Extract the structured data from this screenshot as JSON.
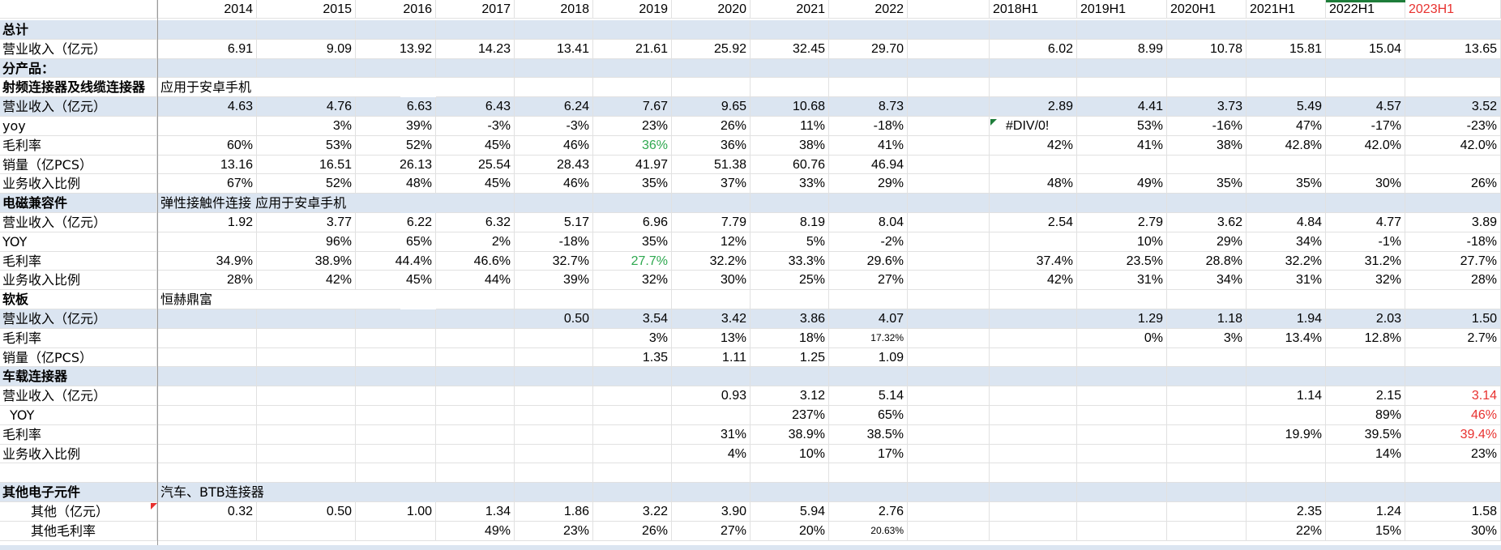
{
  "sheet": {
    "years": [
      "2014",
      "2015",
      "2016",
      "2017",
      "2018",
      "2019",
      "2020",
      "2021",
      "2022"
    ],
    "halves": [
      "2018H1",
      "2019H1",
      "2020H1",
      "2021H1",
      "2022H1",
      "2023H1"
    ],
    "half_colors": [
      null,
      null,
      null,
      null,
      null,
      "#e8312f"
    ],
    "green": "#2ea84f",
    "red": "#e8312f",
    "band": "#dbe5f1",
    "rows": [
      {
        "label": "总计",
        "band": true,
        "bold": true
      },
      {
        "label": "营业收入（亿元）",
        "years": [
          "6.91",
          "9.09",
          "13.92",
          "14.23",
          "13.41",
          "21.61",
          "25.92",
          "32.45",
          "29.70"
        ],
        "halves": [
          "6.02",
          "8.99",
          "10.78",
          "15.81",
          "15.04",
          "13.65"
        ]
      },
      {
        "label": "分产品：",
        "band": true,
        "bold": true
      },
      {
        "label": "射频连接器及线缆连接器",
        "bold": true,
        "note": "应用于安卓手机"
      },
      {
        "label": "营业收入（亿元）",
        "band": true,
        "years": [
          "4.63",
          "4.76",
          "6.63",
          "6.43",
          "6.24",
          "7.67",
          "9.65",
          "10.68",
          "8.73"
        ],
        "halves": [
          "2.89",
          "4.41",
          "3.73",
          "5.49",
          "4.57",
          "3.52"
        ]
      },
      {
        "label": "yoy",
        "years": [
          "",
          "3%",
          "39%",
          "-3%",
          "-3%",
          "23%",
          "26%",
          "11%",
          "-18%"
        ],
        "halves": [
          "#DIV/0!",
          "53%",
          "-16%",
          "47%",
          "-17%",
          "-23%"
        ]
      },
      {
        "label": "毛利率",
        "years": [
          "60%",
          "53%",
          "52%",
          "45%",
          "46%",
          "36%",
          "36%",
          "38%",
          "41%"
        ],
        "years_colors": {
          "5": "green"
        },
        "halves": [
          "42%",
          "41%",
          "38%",
          "42.8%",
          "42.0%",
          "42.0%"
        ]
      },
      {
        "label": "销量（亿PCS）",
        "years": [
          "13.16",
          "16.51",
          "26.13",
          "25.54",
          "28.43",
          "41.97",
          "51.38",
          "60.76",
          "46.94"
        ],
        "halves": [
          "",
          "",
          "",
          "",
          "",
          ""
        ]
      },
      {
        "label": "业务收入比例",
        "years": [
          "67%",
          "52%",
          "48%",
          "45%",
          "46%",
          "35%",
          "37%",
          "33%",
          "29%"
        ],
        "halves": [
          "48%",
          "49%",
          "35%",
          "35%",
          "30%",
          "26%"
        ]
      },
      {
        "label": "电磁兼容件",
        "band": true,
        "bold": true,
        "note": "弹性接触件连接 应用于安卓手机"
      },
      {
        "label": "营业收入（亿元）",
        "years": [
          "1.92",
          "3.77",
          "6.22",
          "6.32",
          "5.17",
          "6.96",
          "7.79",
          "8.19",
          "8.04"
        ],
        "halves": [
          "2.54",
          "2.79",
          "3.62",
          "4.84",
          "4.77",
          "3.89"
        ]
      },
      {
        "label": "YOY",
        "years": [
          "",
          "96%",
          "65%",
          "2%",
          "-18%",
          "35%",
          "12%",
          "5%",
          "-2%"
        ],
        "halves": [
          "",
          "10%",
          "29%",
          "34%",
          "-1%",
          "-18%"
        ]
      },
      {
        "label": "毛利率",
        "years": [
          "34.9%",
          "38.9%",
          "44.4%",
          "46.6%",
          "32.7%",
          "27.7%",
          "32.2%",
          "33.3%",
          "29.6%"
        ],
        "years_colors": {
          "5": "green"
        },
        "halves": [
          "37.4%",
          "23.5%",
          "28.8%",
          "32.2%",
          "31.2%",
          "27.7%"
        ]
      },
      {
        "label": "业务收入比例",
        "years": [
          "28%",
          "42%",
          "45%",
          "44%",
          "39%",
          "32%",
          "30%",
          "25%",
          "27%"
        ],
        "halves": [
          "42%",
          "31%",
          "34%",
          "31%",
          "32%",
          "28%"
        ]
      },
      {
        "label": "软板",
        "bold": true,
        "note": "恒赫鼎富"
      },
      {
        "label": "营业收入（亿元）",
        "band": true,
        "years": [
          "",
          "",
          "",
          "",
          "0.50",
          "3.54",
          "3.42",
          "3.86",
          "4.07"
        ],
        "halves": [
          "",
          "1.29",
          "1.18",
          "1.94",
          "2.03",
          "1.50"
        ]
      },
      {
        "label": "毛利率",
        "years": [
          "",
          "",
          "",
          "",
          "",
          "3%",
          "13%",
          "18%",
          "17.32%"
        ],
        "years_small": {
          "8": true
        },
        "halves": [
          "",
          "0%",
          "3%",
          "13.4%",
          "12.8%",
          "2.7%"
        ]
      },
      {
        "label": "销量（亿PCS）",
        "years": [
          "",
          "",
          "",
          "",
          "",
          "1.35",
          "1.11",
          "1.25",
          "1.09"
        ],
        "halves": [
          "",
          "",
          "",
          "",
          "",
          ""
        ]
      },
      {
        "label": "车载连接器",
        "band": true,
        "bold": true
      },
      {
        "label": "营业收入（亿元）",
        "years": [
          "",
          "",
          "",
          "",
          "",
          "",
          "0.93",
          "3.12",
          "5.14"
        ],
        "halves": [
          "",
          "",
          "",
          "1.14",
          "2.15",
          "3.14"
        ],
        "halves_colors": {
          "5": "red"
        }
      },
      {
        "label": "YOY",
        "indent": 1,
        "years": [
          "",
          "",
          "",
          "",
          "",
          "",
          "",
          "237%",
          "65%"
        ],
        "halves": [
          "",
          "",
          "",
          "",
          "89%",
          "46%"
        ],
        "halves_colors": {
          "5": "red"
        }
      },
      {
        "label": "毛利率",
        "years": [
          "",
          "",
          "",
          "",
          "",
          "",
          "31%",
          "38.9%",
          "38.5%"
        ],
        "halves": [
          "",
          "",
          "",
          "19.9%",
          "39.5%",
          "39.4%"
        ],
        "halves_colors": {
          "5": "red"
        }
      },
      {
        "label": "业务收入比例",
        "years": [
          "",
          "",
          "",
          "",
          "",
          "",
          "4%",
          "10%",
          "17%"
        ],
        "halves": [
          "",
          "",
          "",
          "",
          "14%",
          "23%"
        ]
      },
      {
        "label": ""
      },
      {
        "label": "其他电子元件",
        "band": true,
        "bold": true,
        "note": "汽车、BTB连接器"
      },
      {
        "label": "其他（亿元）",
        "indent": 2,
        "years": [
          "0.32",
          "0.50",
          "1.00",
          "1.34",
          "1.86",
          "3.22",
          "3.90",
          "5.94",
          "2.76"
        ],
        "halves": [
          "",
          "",
          "",
          "2.35",
          "1.24",
          "1.58"
        ]
      },
      {
        "label": "其他毛利率",
        "indent": 2,
        "years": [
          "",
          "",
          "",
          "49%",
          "23%",
          "26%",
          "27%",
          "20%",
          "20.63%"
        ],
        "years_small": {
          "8": true
        },
        "halves": [
          "",
          "",
          "",
          "22%",
          "15%",
          "30%"
        ]
      }
    ]
  }
}
